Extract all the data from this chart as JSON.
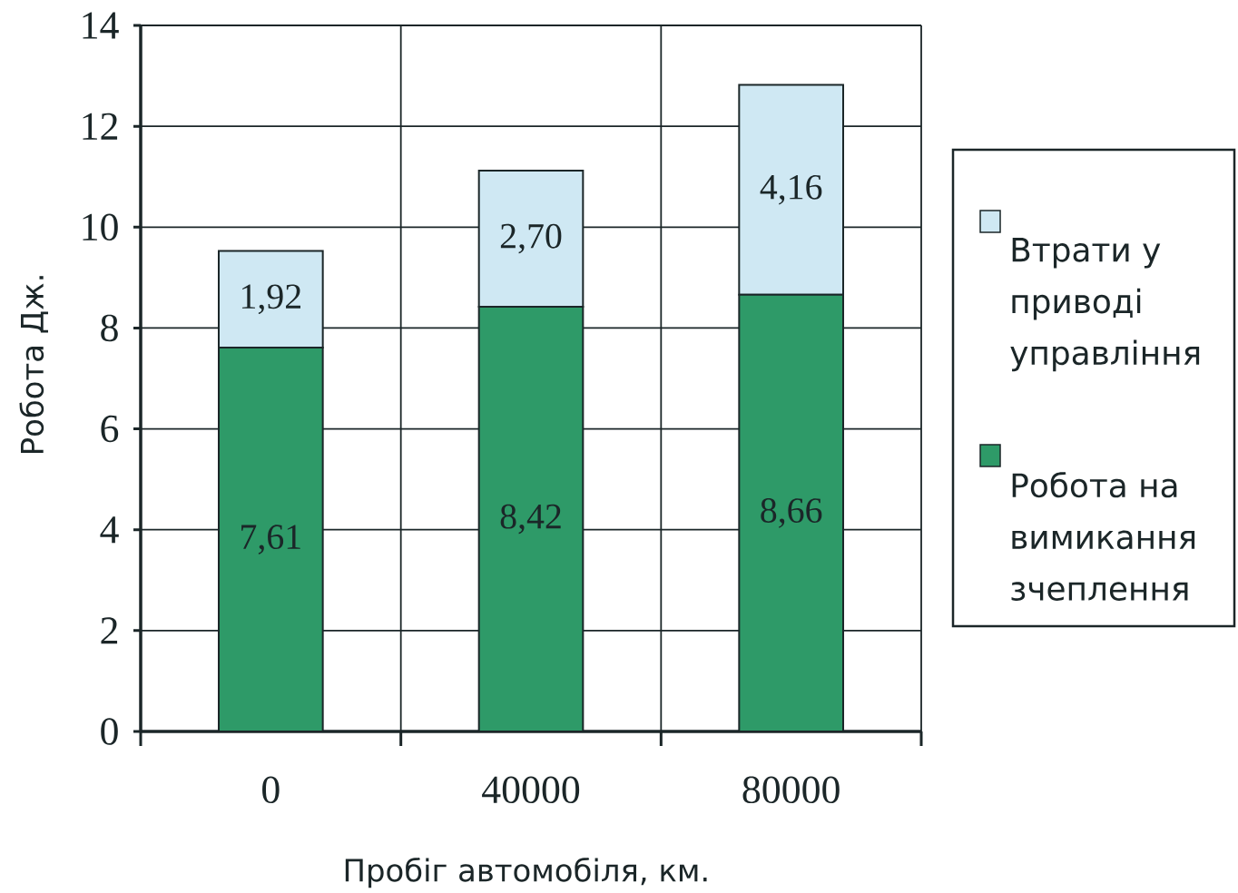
{
  "chart_data": {
    "type": "bar",
    "stacked": true,
    "xlabel": "Пробіг автомобіля, км.",
    "ylabel": "Робота Дж.",
    "categories": [
      "0",
      "40000",
      "80000"
    ],
    "series": [
      {
        "name": "Робота на вимикання зчеплення",
        "color": "#2e9a68",
        "values": [
          7.61,
          8.42,
          8.66
        ],
        "value_labels": [
          "7,61",
          "8,42",
          "8,66"
        ]
      },
      {
        "name": "Втрати у приводі управління",
        "color": "#cfe8f3",
        "values": [
          1.92,
          2.7,
          4.16
        ],
        "value_labels": [
          "1,92",
          "2,70",
          "4,16"
        ]
      }
    ],
    "ylim": [
      0,
      14
    ],
    "yticks": [
      0,
      2,
      4,
      6,
      8,
      10,
      12,
      14
    ],
    "grid": true,
    "legend": "right"
  }
}
